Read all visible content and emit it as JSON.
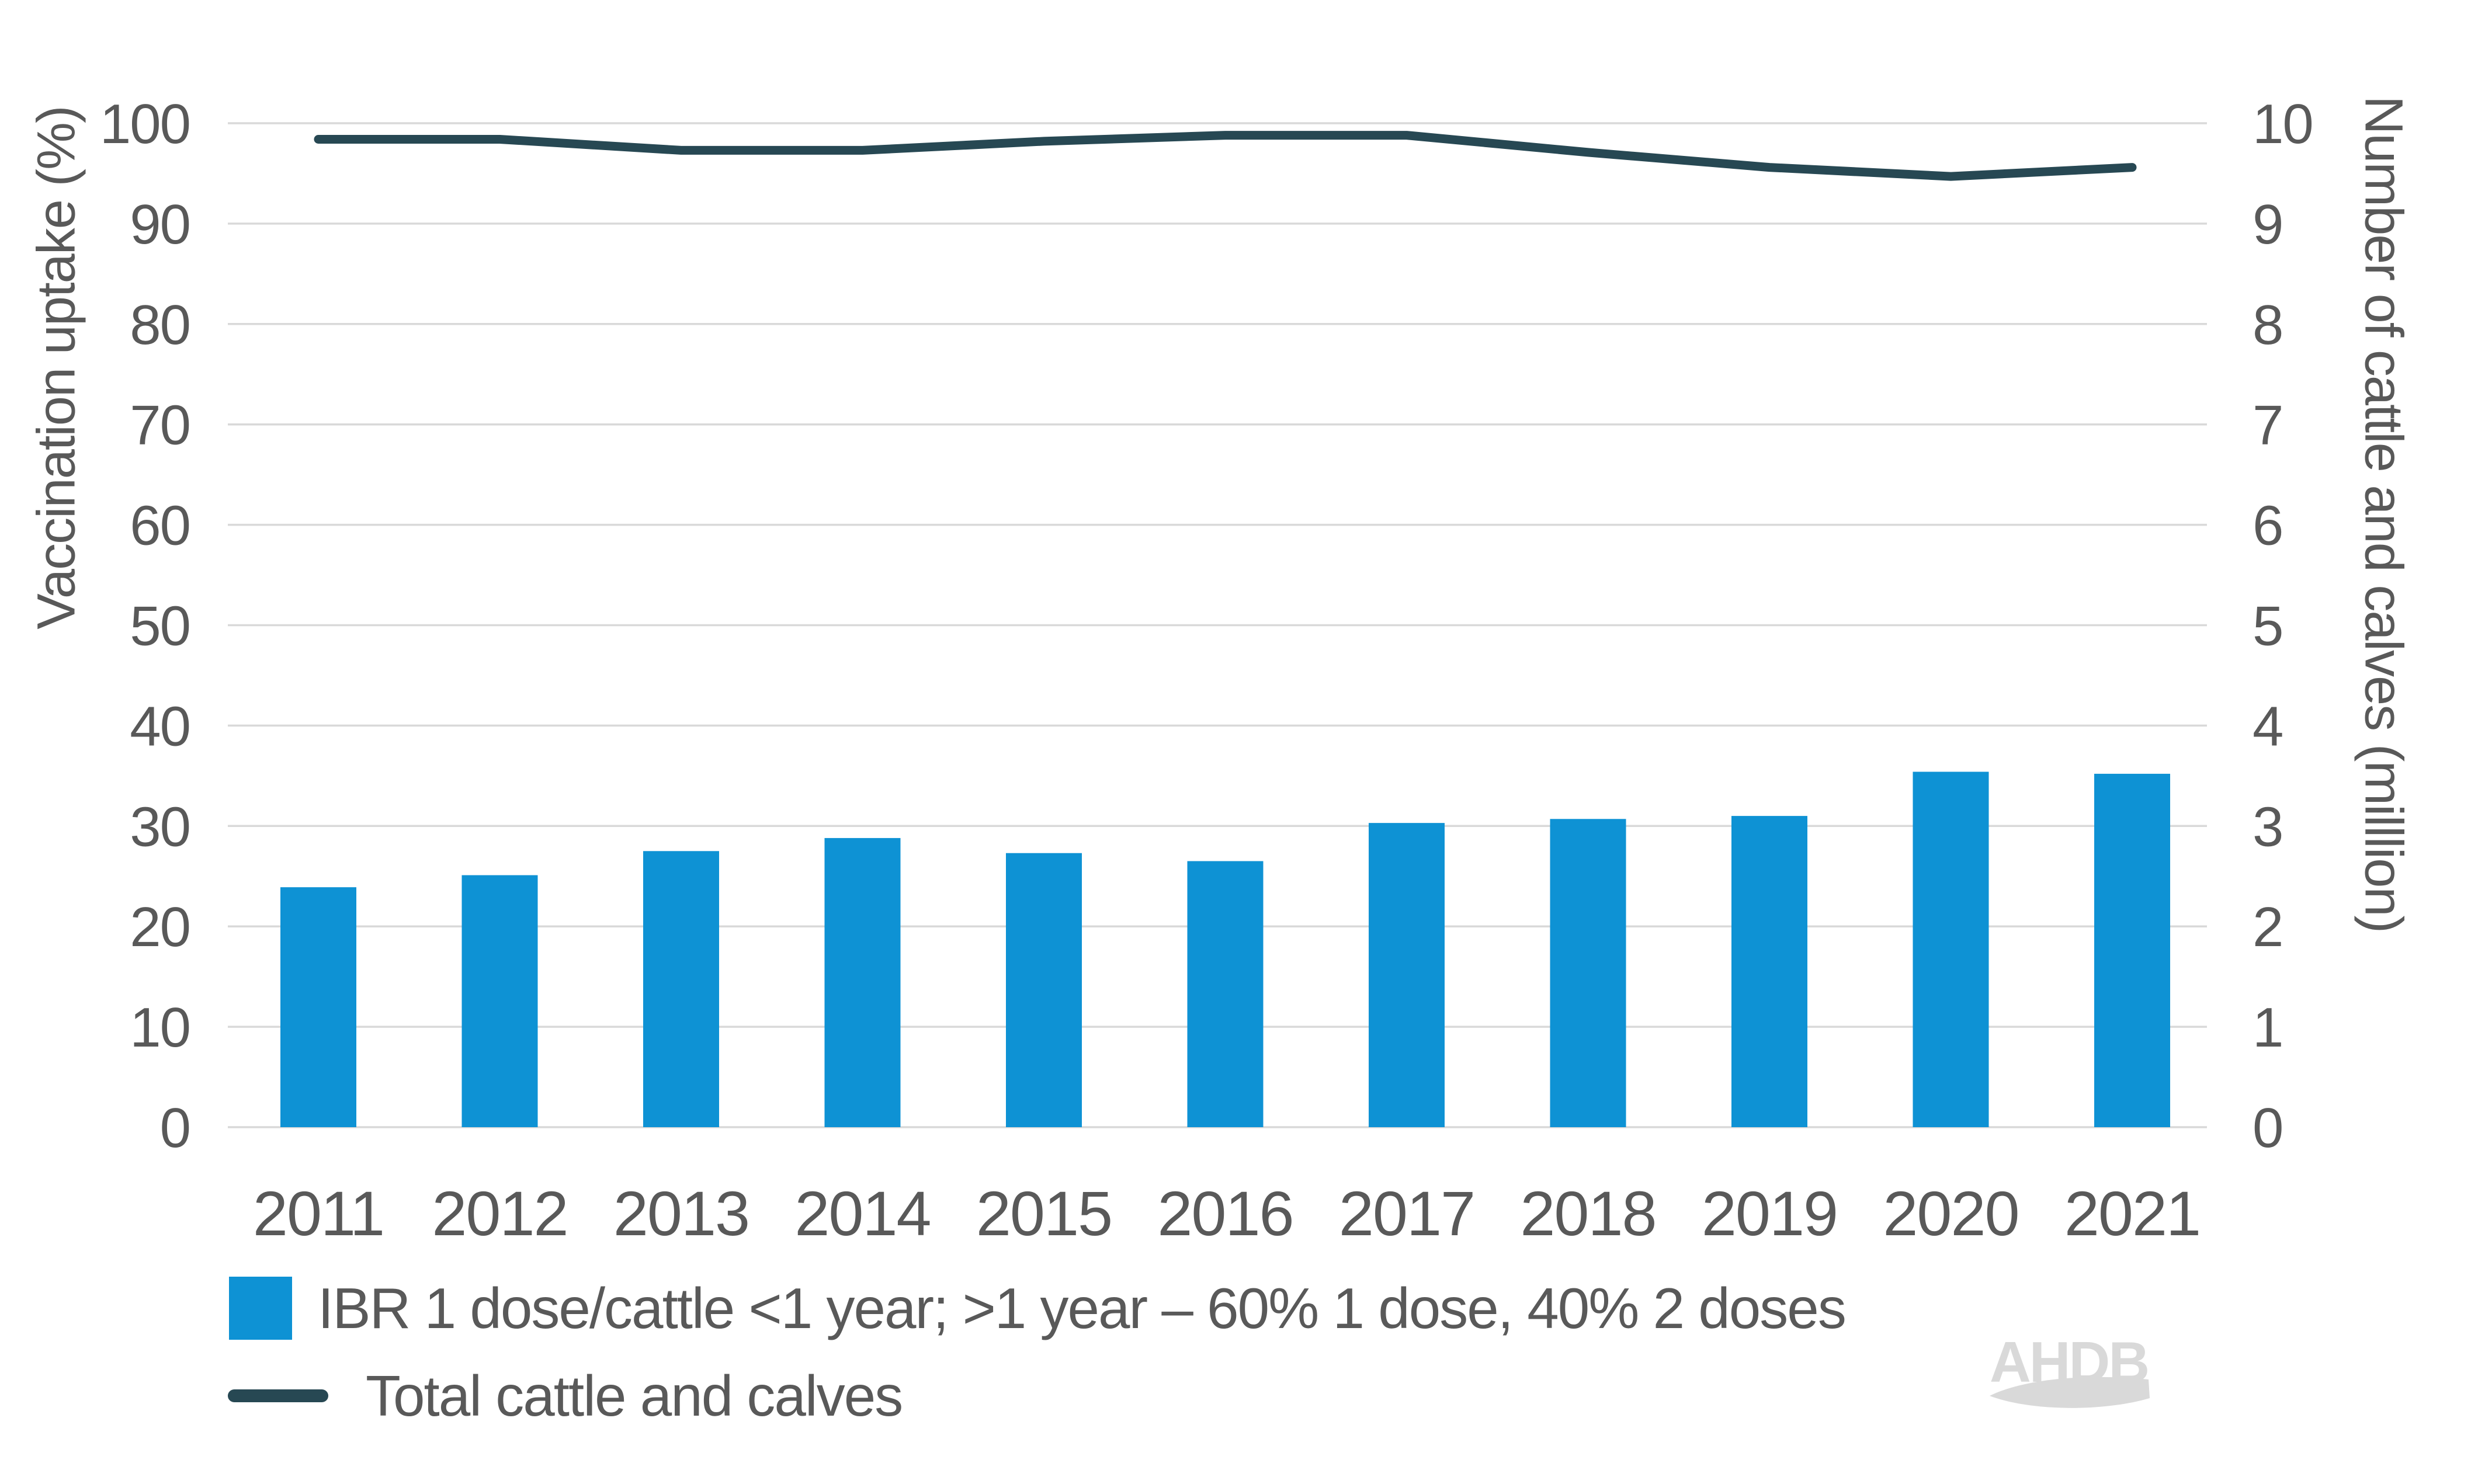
{
  "figure": {
    "background": "#ffffff"
  },
  "logo": {
    "text": "AHDB",
    "color": "#d9d9d9"
  },
  "chart_data": {
    "type": "bar+line",
    "categories": [
      "2011",
      "2012",
      "2013",
      "2014",
      "2015",
      "2016",
      "2017",
      "2018",
      "2019",
      "2020",
      "2021"
    ],
    "series": [
      {
        "name": "IBR 1 dose/cattle <1 year; >1 year – 60% 1 dose, 40% 2 doses",
        "type": "bar",
        "axis": "left",
        "color": "#0e92d4",
        "values": [
          23.9,
          25.1,
          27.5,
          28.8,
          27.3,
          26.5,
          30.3,
          30.7,
          31.0,
          35.4,
          35.2
        ]
      },
      {
        "name": "Total cattle and calves",
        "type": "line",
        "axis": "right",
        "color": "#274853",
        "values": [
          9.84,
          9.84,
          9.73,
          9.73,
          9.82,
          9.88,
          9.88,
          9.71,
          9.56,
          9.47,
          9.56
        ]
      }
    ],
    "ylabel": "Vaccination uptake (%)",
    "y2label": "Number of cattle and calves (milllion)",
    "y_min": 0,
    "y_max": 100,
    "y2_min": 0,
    "y2_max": 10,
    "y_ticks": [
      100,
      90,
      80,
      70,
      60,
      50,
      40,
      30,
      20,
      10,
      0
    ],
    "y2_ticks": [
      10,
      9,
      8,
      7,
      6,
      5,
      4,
      3,
      2,
      1,
      0
    ],
    "grid": true,
    "legend_position": "bottom-left",
    "text_color": "#595959",
    "grid_color": "#d9d9d9"
  }
}
